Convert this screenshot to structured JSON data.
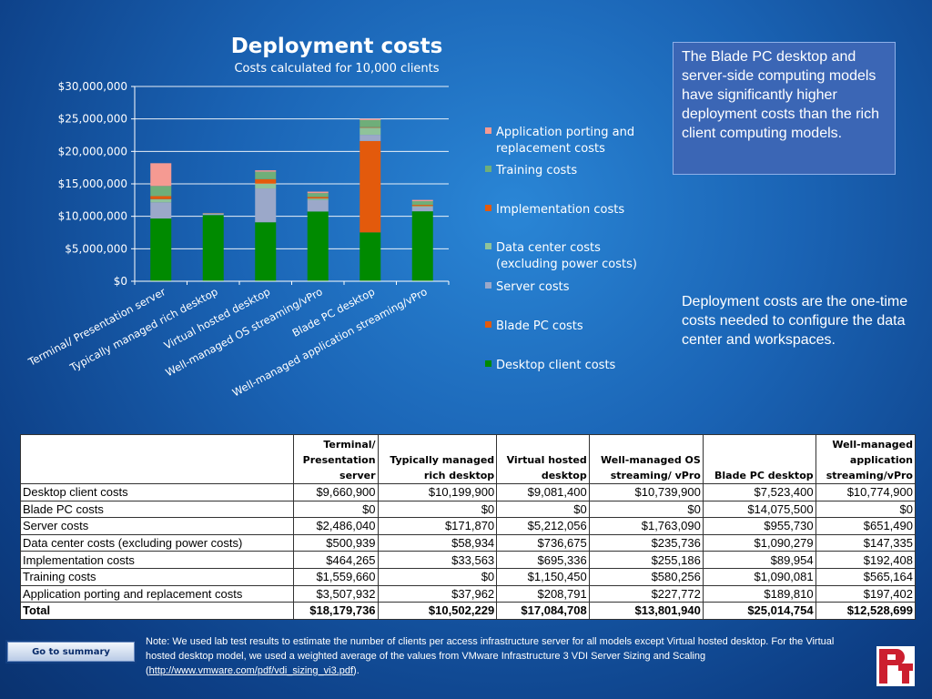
{
  "chart_data": {
    "type": "bar",
    "stacked": true,
    "title": "Deployment costs",
    "subtitle": "Costs calculated for 10,000 clients",
    "ylim": [
      0,
      30000000
    ],
    "ytick_values": [
      0,
      5000000,
      10000000,
      15000000,
      20000000,
      25000000,
      30000000
    ],
    "ytick_labels": [
      "$0",
      "$5,000,000",
      "$10,000,000",
      "$15,000,000",
      "$20,000,000",
      "$25,000,000",
      "$30,000,000"
    ],
    "categories": [
      "Terminal/ Presentation server",
      "Typically  managed rich desktop",
      "Virtual hosted desktop",
      "Well-managed OS streaming/vPro",
      "Blade PC desktop",
      "Well-managed application streaming/vPro"
    ],
    "grid": true,
    "legend_position": "right",
    "series": [
      {
        "name": "Desktop client costs",
        "color": "#008a00",
        "values": [
          9660900,
          10199900,
          9081400,
          10739900,
          7523400,
          10774900
        ]
      },
      {
        "name": "Blade PC costs",
        "color": "#e35a0c",
        "values": [
          0,
          0,
          0,
          0,
          14075500,
          0
        ]
      },
      {
        "name": "Server costs",
        "color": "#9ba8c9",
        "values": [
          2486040,
          171870,
          5212056,
          1763090,
          955730,
          651490
        ]
      },
      {
        "name": "Data center costs (excluding power costs)",
        "color": "#8fc39a",
        "values": [
          500939,
          58934,
          736675,
          235736,
          1090279,
          147335
        ]
      },
      {
        "name": "Implementation costs",
        "color": "#e35a0c",
        "values": [
          464265,
          33563,
          695336,
          255186,
          89954,
          192408
        ]
      },
      {
        "name": "Training costs",
        "color": "#6fae79",
        "values": [
          1559660,
          0,
          1150450,
          580256,
          1090081,
          565164
        ]
      },
      {
        "name": "Application porting and replacement costs",
        "color": "#f59a92",
        "values": [
          3507932,
          37962,
          208791,
          227772,
          189810,
          197402
        ]
      }
    ],
    "legend_order": [
      {
        "name": "Application porting and replacement costs",
        "lines": [
          "Application porting and",
          "replacement costs"
        ],
        "color": "#f59a92"
      },
      {
        "name": "Training costs",
        "lines": [
          "Training costs"
        ],
        "color": "#6fae79"
      },
      {
        "name": "Implementation costs",
        "lines": [
          "Implementation costs"
        ],
        "color": "#e35a0c"
      },
      {
        "name": "Data center costs (excluding power costs)",
        "lines": [
          "Data center costs",
          "(excluding power costs)"
        ],
        "color": "#8fc39a"
      },
      {
        "name": "Server costs",
        "lines": [
          "Server costs"
        ],
        "color": "#9ba8c9"
      },
      {
        "name": "Blade PC costs",
        "lines": [
          "Blade PC costs"
        ],
        "color": "#e35a0c"
      },
      {
        "name": "Desktop client costs",
        "lines": [
          "Desktop client costs"
        ],
        "color": "#008a00"
      }
    ]
  },
  "callout": "The Blade PC desktop and server-side computing models have significantly higher deployment costs than the rich client computing models.",
  "side_note": "Deployment costs are the one-time costs needed to configure the data center and workspaces.",
  "table": {
    "headers": [
      "",
      [
        "Terminal/",
        "Presentation",
        "server"
      ],
      [
        "Typically  managed",
        "rich desktop"
      ],
      [
        "Virtual hosted",
        "desktop"
      ],
      [
        "Well-managed OS",
        "streaming/ vPro"
      ],
      [
        "Blade PC desktop"
      ],
      [
        "Well-managed",
        "application",
        "streaming/vPro"
      ]
    ],
    "rows": [
      [
        "Desktop client costs",
        "$9,660,900",
        "$10,199,900",
        "$9,081,400",
        "$10,739,900",
        "$7,523,400",
        "$10,774,900"
      ],
      [
        "Blade PC costs",
        "$0",
        "$0",
        "$0",
        "$0",
        "$14,075,500",
        "$0"
      ],
      [
        "Server costs",
        "$2,486,040",
        "$171,870",
        "$5,212,056",
        "$1,763,090",
        "$955,730",
        "$651,490"
      ],
      [
        "Data center costs (excluding power costs)",
        "$500,939",
        "$58,934",
        "$736,675",
        "$235,736",
        "$1,090,279",
        "$147,335"
      ],
      [
        "Implementation costs",
        "$464,265",
        "$33,563",
        "$695,336",
        "$255,186",
        "$89,954",
        "$192,408"
      ],
      [
        "Training costs",
        "$1,559,660",
        "$0",
        "$1,150,450",
        "$580,256",
        "$1,090,081",
        "$565,164"
      ],
      [
        "Application porting and replacement costs",
        "$3,507,932",
        "$37,962",
        "$208,791",
        "$227,772",
        "$189,810",
        "$197,402"
      ]
    ],
    "total": [
      "Total",
      "$18,179,736",
      "$10,502,229",
      "$17,084,708",
      "$13,801,940",
      "$25,014,754",
      "$12,528,699"
    ]
  },
  "note": {
    "text": "Note: We used lab test results to estimate the number of clients per access infrastructure server for all models except Virtual hosted desktop. For the Virtual hosted desktop model, we used a weighted average of the values from VMware Infrastructure 3 VDI Server Sizing and Scaling (",
    "link": "http://www.vmware.com/pdf/vdi_sizing_vi3.pdf",
    "end": ")."
  },
  "goto_label": "Go to summary",
  "logo": {
    "text": "PT",
    "color": "#cc1f2f"
  }
}
